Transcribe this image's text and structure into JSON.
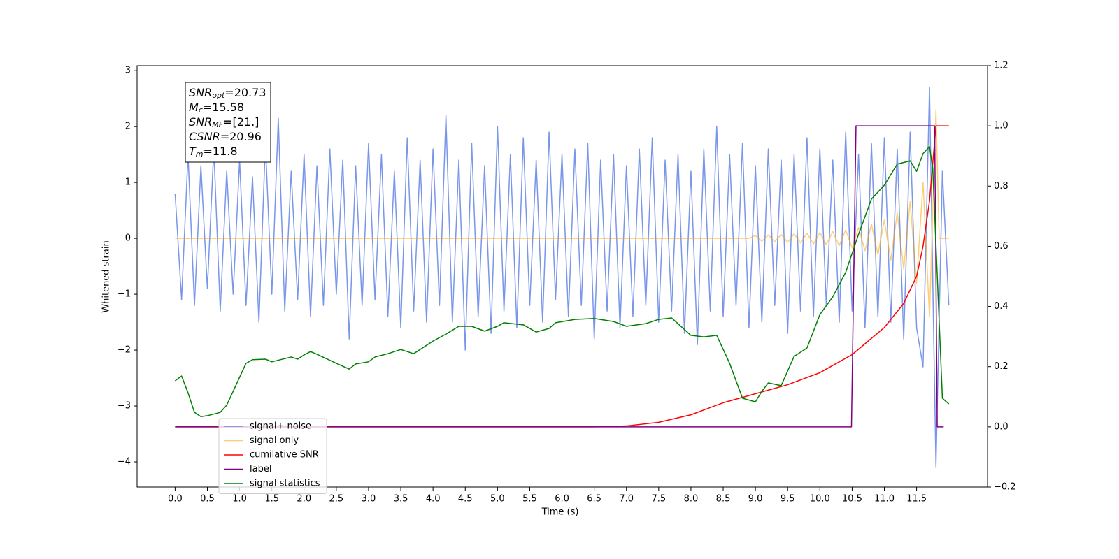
{
  "chart_data": {
    "type": "line",
    "xlabel": "Time (s)",
    "ylabel": "Whitened strain",
    "xlim": [
      -0.59,
      12.6
    ],
    "ylim": [
      -4.45,
      3.09
    ],
    "y2lim": [
      -0.2,
      1.2
    ],
    "xticks": [
      {
        "value": 0,
        "label": "0.0"
      },
      0.5,
      {
        "value": 1,
        "label": "1.0"
      },
      1.5,
      {
        "value": 2,
        "label": "2.0"
      },
      2.5,
      {
        "value": 3,
        "label": "3.0"
      },
      3.5,
      {
        "value": 4,
        "label": "4.0"
      },
      4.5,
      {
        "value": 5,
        "label": "5.0"
      },
      5.5,
      {
        "value": 6,
        "label": "6.0"
      },
      6.5,
      {
        "value": 7,
        "label": "7.0"
      },
      7.5,
      {
        "value": 8,
        "label": "8.0"
      },
      8.5,
      {
        "value": 9,
        "label": "9.0"
      },
      9.5,
      {
        "value": 10,
        "label": "10.0"
      },
      10.5,
      {
        "value": 11,
        "label": "11.0"
      },
      11.5
    ],
    "yticks": [
      {
        "value": -4,
        "label": "−4"
      },
      {
        "value": -3,
        "label": "−3"
      },
      {
        "value": -2,
        "label": "−2"
      },
      {
        "value": -1,
        "label": "−1"
      },
      0,
      1,
      2,
      3
    ],
    "y2ticks": [
      {
        "value": -0.2,
        "label": "−0.2"
      },
      {
        "value": 0,
        "label": "0.0"
      },
      0.2,
      0.4,
      0.6,
      0.8,
      {
        "value": 1,
        "label": "1.0"
      },
      1.2
    ],
    "legend": "lower left",
    "annotations": [
      {
        "symbol": "SNR",
        "subscript": "opt",
        "text": "=20.73"
      },
      {
        "symbol": "M",
        "subscript": "c",
        "text": "=15.58"
      },
      {
        "symbol": "SNR",
        "subscript": "MF",
        "text": "=[21.]"
      },
      {
        "symbol": "CSNR",
        "text": "=20.96"
      },
      {
        "symbol": "T",
        "subscript": "m",
        "text": "=11.8"
      }
    ],
    "series": [
      {
        "name": "signal+ noise",
        "color": "#4169e1",
        "alpha": 0.7,
        "x": [
          0,
          0.1,
          0.2,
          0.3,
          0.4,
          0.5,
          0.6,
          0.7,
          0.8,
          0.9,
          1,
          1.1,
          1.2,
          1.3,
          1.4,
          1.5,
          1.6,
          1.7,
          1.8,
          1.9,
          2,
          2.1,
          2.2,
          2.3,
          2.4,
          2.5,
          2.6,
          2.7,
          2.8,
          2.9,
          3,
          3.1,
          3.2,
          3.3,
          3.4,
          3.5,
          3.6,
          3.7,
          3.8,
          3.9,
          4,
          4.1,
          4.2,
          4.3,
          4.4,
          4.5,
          4.6,
          4.7,
          4.8,
          4.9,
          5,
          5.1,
          5.2,
          5.3,
          5.4,
          5.5,
          5.6,
          5.7,
          5.8,
          5.9,
          6,
          6.1,
          6.2,
          6.3,
          6.4,
          6.5,
          6.6,
          6.7,
          6.8,
          6.9,
          7,
          7.1,
          7.2,
          7.3,
          7.4,
          7.5,
          7.6,
          7.7,
          7.8,
          7.9,
          8,
          8.1,
          8.2,
          8.3,
          8.4,
          8.5,
          8.6,
          8.7,
          8.8,
          8.9,
          9,
          9.1,
          9.2,
          9.3,
          9.4,
          9.5,
          9.6,
          9.7,
          9.8,
          9.9,
          10,
          10.1,
          10.2,
          10.3,
          10.4,
          10.5,
          10.6,
          10.7,
          10.8,
          10.9,
          11,
          11.1,
          11.2,
          11.3,
          11.4,
          11.5,
          11.6,
          11.7,
          11.8,
          11.9,
          12
        ],
        "values": [
          0.8,
          -1.1,
          1.5,
          -1.2,
          1.3,
          -0.9,
          1.6,
          -1.3,
          1.2,
          -1.0,
          1.4,
          -1.2,
          1.1,
          -1.5,
          1.7,
          -1.0,
          2.15,
          -1.3,
          1.2,
          -1.1,
          1.5,
          -1.4,
          1.3,
          -1.2,
          1.6,
          -1.0,
          1.4,
          -1.8,
          1.3,
          -1.2,
          1.7,
          -1.1,
          1.5,
          -1.4,
          1.2,
          -1.6,
          1.8,
          -1.3,
          1.4,
          -1.5,
          1.6,
          -1.2,
          2.2,
          -1.5,
          1.4,
          -2.0,
          1.7,
          -1.4,
          1.3,
          -1.7,
          2.0,
          -1.3,
          1.5,
          -1.6,
          1.8,
          -1.2,
          1.4,
          -1.5,
          1.9,
          -1.1,
          1.5,
          -1.4,
          1.6,
          -1.2,
          1.7,
          -1.8,
          1.4,
          -1.3,
          1.5,
          -1.6,
          1.3,
          -1.4,
          1.6,
          -1.2,
          1.8,
          -1.5,
          1.4,
          -1.3,
          1.5,
          -1.7,
          1.2,
          -1.9,
          1.6,
          -1.3,
          2.0,
          -1.4,
          1.5,
          -1.2,
          1.7,
          -1.6,
          1.3,
          -1.5,
          1.6,
          -1.2,
          1.4,
          -1.7,
          1.5,
          -1.3,
          1.8,
          -1.4,
          1.6,
          -1.2,
          1.4,
          -1.5,
          1.9,
          -1.3,
          1.5,
          -1.6,
          1.7,
          -1.4,
          1.8,
          -1.5,
          1.6,
          -1.8,
          1.9,
          -1.6,
          -2.3,
          2.7,
          -4.1,
          1.2,
          -1.2
        ]
      },
      {
        "name": "signal only",
        "color": "#ffa500",
        "alpha": 0.55,
        "x": [
          0,
          8.9,
          9,
          9.1,
          9.2,
          9.3,
          9.4,
          9.5,
          9.6,
          9.7,
          9.8,
          9.9,
          10,
          10.1,
          10.2,
          10.3,
          10.4,
          10.5,
          10.6,
          10.7,
          10.8,
          10.9,
          11,
          11.1,
          11.2,
          11.3,
          11.4,
          11.5,
          11.6,
          11.7,
          11.8,
          11.85,
          12
        ],
        "values": [
          0,
          0,
          0.05,
          -0.05,
          0.06,
          -0.06,
          0.07,
          -0.07,
          0.08,
          -0.08,
          0.09,
          -0.1,
          0.1,
          -0.11,
          0.12,
          -0.13,
          0.15,
          -0.17,
          0.19,
          -0.22,
          0.25,
          -0.29,
          0.33,
          -0.39,
          0.46,
          -0.55,
          0.66,
          -0.8,
          1.0,
          -1.4,
          2.3,
          0,
          0
        ]
      },
      {
        "name": "cumilative SNR",
        "color": "#ff0000",
        "alpha": 1,
        "axis": "y2",
        "x": [
          0,
          6.5,
          7,
          7.5,
          8,
          8.5,
          9,
          9.5,
          10,
          10.5,
          11,
          11.3,
          11.5,
          11.6,
          11.7,
          11.8,
          12
        ],
        "values": [
          0,
          0,
          0.003,
          0.015,
          0.04,
          0.08,
          0.11,
          0.14,
          0.18,
          0.24,
          0.33,
          0.41,
          0.5,
          0.6,
          0.75,
          1.0,
          1.0
        ]
      },
      {
        "name": "label",
        "color": "#800080",
        "alpha": 1,
        "axis": "y2",
        "x": [
          0,
          10.49,
          10.56,
          11.78,
          11.82,
          11.92
        ],
        "values": [
          0,
          0,
          1,
          1,
          0,
          0
        ]
      },
      {
        "name": "signal statistics",
        "color": "#008000",
        "alpha": 1,
        "axis": "y2",
        "x": [
          0,
          0.1,
          0.2,
          0.3,
          0.4,
          0.5,
          0.7,
          0.8,
          0.9,
          1,
          1.1,
          1.2,
          1.4,
          1.5,
          1.8,
          1.9,
          2,
          2.1,
          2.2,
          2.5,
          2.7,
          2.8,
          3,
          3.1,
          3.3,
          3.5,
          3.7,
          4,
          4.2,
          4.4,
          4.6,
          4.8,
          5,
          5.1,
          5.4,
          5.6,
          5.8,
          5.9,
          6.2,
          6.5,
          6.8,
          7,
          7.3,
          7.5,
          7.7,
          8,
          8.2,
          8.4,
          8.6,
          8.8,
          9,
          9.1,
          9.2,
          9.4,
          9.6,
          9.8,
          10,
          10.2,
          10.4,
          10.6,
          10.8,
          11,
          11.2,
          11.4,
          11.5,
          11.6,
          11.7,
          11.75,
          11.9,
          12
        ],
        "values": [
          0.153,
          0.169,
          0.113,
          0.048,
          0.034,
          0.037,
          0.048,
          0.072,
          0.118,
          0.165,
          0.211,
          0.223,
          0.225,
          0.216,
          0.232,
          0.225,
          0.239,
          0.25,
          0.241,
          0.211,
          0.192,
          0.209,
          0.216,
          0.232,
          0.243,
          0.257,
          0.243,
          0.285,
          0.308,
          0.334,
          0.334,
          0.318,
          0.334,
          0.346,
          0.339,
          0.315,
          0.327,
          0.346,
          0.357,
          0.36,
          0.35,
          0.334,
          0.343,
          0.357,
          0.362,
          0.304,
          0.299,
          0.304,
          0.211,
          0.095,
          0.083,
          0.118,
          0.146,
          0.137,
          0.234,
          0.262,
          0.373,
          0.432,
          0.513,
          0.64,
          0.757,
          0.803,
          0.873,
          0.884,
          0.849,
          0.908,
          0.931,
          0.861,
          0.095,
          0.076
        ]
      }
    ]
  }
}
